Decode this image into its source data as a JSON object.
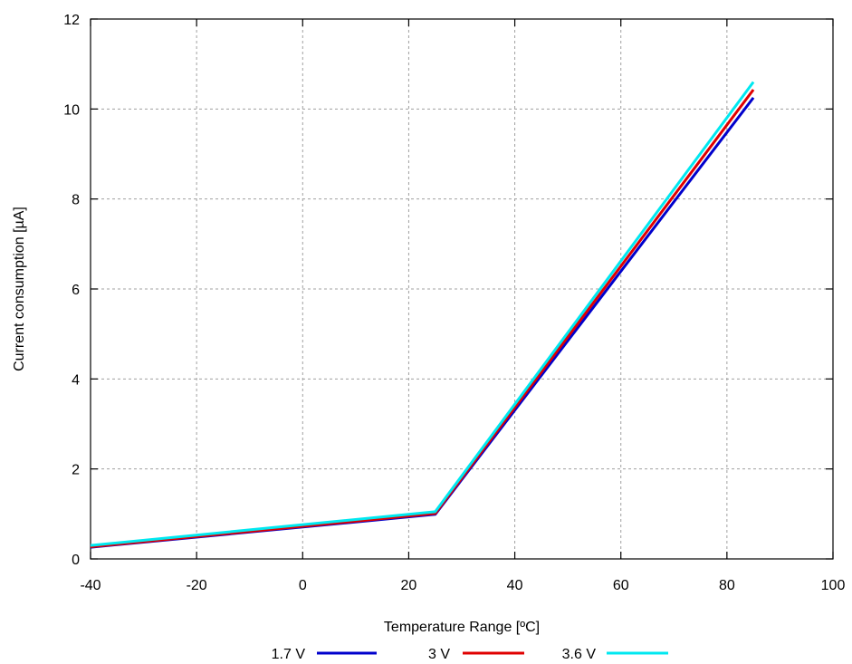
{
  "chart_data": {
    "type": "line",
    "xlabel": "Temperature Range [ºC]",
    "ylabel": "Current consumption [µA]",
    "xlim": [
      -40,
      100
    ],
    "ylim": [
      0,
      12
    ],
    "xticks": [
      "-40",
      "-20",
      "0",
      "20",
      "40",
      "60",
      "80",
      "100"
    ],
    "yticks": [
      "0",
      "2",
      "4",
      "6",
      "8",
      "10",
      "12"
    ],
    "grid": true,
    "legend_position": "bottom",
    "series": [
      {
        "name": "1.7 V",
        "color": "#0000cc",
        "x": [
          -40,
          25,
          85
        ],
        "y": [
          0.26,
          0.99,
          10.25
        ]
      },
      {
        "name": "3 V",
        "color": "#e00000",
        "x": [
          -40,
          25,
          85
        ],
        "y": [
          0.27,
          1.01,
          10.43
        ]
      },
      {
        "name": "3.6 V",
        "color": "#00e8f0",
        "x": [
          -40,
          25,
          85
        ],
        "y": [
          0.3,
          1.05,
          10.6
        ]
      }
    ]
  }
}
